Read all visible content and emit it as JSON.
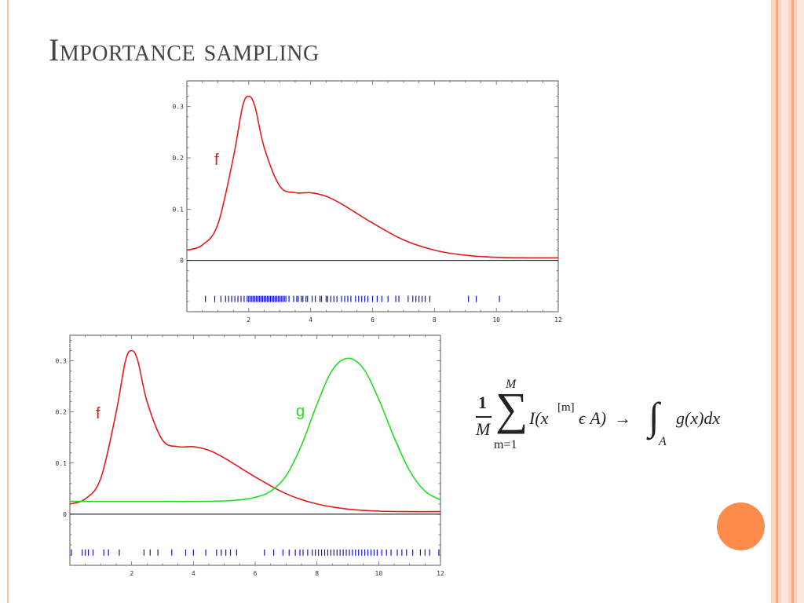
{
  "slide": {
    "title": "Importance sampling",
    "accent_color": "#fd8b4c",
    "rule_color": "#f7c3ab"
  },
  "formula": {
    "fraction_numerator": "1",
    "fraction_denominator": "M",
    "sum_upper": "M",
    "sum_lower": "m=1",
    "summand": "I(x",
    "superscript": "[m]",
    "summand_rest": "ϵ A)",
    "arrow": "→",
    "integral_subscript": "A",
    "integrand": "g(x)dx"
  },
  "chart_data": [
    {
      "type": "line",
      "x_ticks": [
        "2",
        "4",
        "6",
        "8",
        "10",
        "12"
      ],
      "y_ticks": [
        "0",
        "0.1",
        "0.2",
        "0.3"
      ],
      "xlim": [
        0,
        12
      ],
      "ylim": [
        -0.1,
        0.35
      ],
      "series": [
        {
          "name": "f",
          "color": "#e21b1b",
          "x": [
            0,
            0.5,
            1,
            1.5,
            1.8,
            2,
            2.2,
            2.5,
            3,
            3.5,
            4,
            4.5,
            5,
            6,
            7,
            8,
            9,
            10,
            11,
            12
          ],
          "y": [
            0.02,
            0.03,
            0.07,
            0.2,
            0.3,
            0.32,
            0.3,
            0.22,
            0.145,
            0.132,
            0.132,
            0.125,
            0.11,
            0.073,
            0.04,
            0.02,
            0.01,
            0.006,
            0.005,
            0.005
          ]
        }
      ],
      "rug": {
        "color": "#1414c8",
        "samples": [
          0.6,
          0.9,
          1.1,
          1.25,
          1.35,
          1.45,
          1.55,
          1.65,
          1.75,
          1.85,
          1.95,
          2.0,
          2.05,
          2.1,
          2.15,
          2.2,
          2.25,
          2.3,
          2.35,
          2.4,
          2.45,
          2.5,
          2.55,
          2.6,
          2.65,
          2.7,
          2.75,
          2.8,
          2.85,
          2.9,
          2.95,
          3.0,
          3.05,
          3.1,
          3.15,
          3.2,
          3.3,
          3.45,
          3.55,
          3.6,
          3.7,
          3.75,
          3.85,
          3.9,
          4.05,
          4.15,
          4.3,
          4.35,
          4.5,
          4.55,
          4.65,
          4.75,
          4.85,
          5.0,
          5.1,
          5.2,
          5.3,
          5.45,
          5.55,
          5.65,
          5.75,
          5.85,
          6.0,
          6.15,
          6.3,
          6.5,
          6.75,
          6.85,
          7.15,
          7.3,
          7.4,
          7.5,
          7.6,
          7.7,
          7.85,
          9.1,
          9.35,
          10.1
        ]
      }
    },
    {
      "type": "line",
      "x_ticks": [
        "2",
        "4",
        "6",
        "8",
        "10",
        "12"
      ],
      "y_ticks": [
        "0",
        "0.1",
        "0.2",
        "0.3"
      ],
      "xlim": [
        0,
        12
      ],
      "ylim": [
        -0.1,
        0.35
      ],
      "series": [
        {
          "name": "f",
          "color": "#e21b1b",
          "x": [
            0,
            0.5,
            1,
            1.5,
            1.8,
            2,
            2.2,
            2.5,
            3,
            3.5,
            4,
            4.5,
            5,
            6,
            7,
            8,
            9,
            10,
            11,
            12
          ],
          "y": [
            0.02,
            0.03,
            0.07,
            0.2,
            0.3,
            0.32,
            0.3,
            0.22,
            0.145,
            0.132,
            0.132,
            0.125,
            0.11,
            0.073,
            0.04,
            0.02,
            0.01,
            0.006,
            0.005,
            0.005
          ]
        },
        {
          "name": "g",
          "color": "#22dd22",
          "x": [
            0,
            1,
            2,
            3,
            4,
            5,
            5.5,
            6,
            6.5,
            7,
            7.5,
            8,
            8.5,
            9,
            9.5,
            10,
            10.5,
            11,
            11.5,
            12
          ],
          "y": [
            0.025,
            0.025,
            0.025,
            0.025,
            0.025,
            0.026,
            0.028,
            0.033,
            0.045,
            0.075,
            0.135,
            0.215,
            0.282,
            0.305,
            0.285,
            0.225,
            0.15,
            0.085,
            0.045,
            0.028
          ]
        }
      ],
      "rug": {
        "color": "#1414c8",
        "samples": [
          0.05,
          0.4,
          0.5,
          0.6,
          0.75,
          1.1,
          1.25,
          1.6,
          2.4,
          2.6,
          2.85,
          3.3,
          3.75,
          4.0,
          4.4,
          4.75,
          4.9,
          5.05,
          5.2,
          5.4,
          6.3,
          6.6,
          6.9,
          7.1,
          7.3,
          7.45,
          7.55,
          7.7,
          7.85,
          7.95,
          8.05,
          8.15,
          8.25,
          8.35,
          8.45,
          8.55,
          8.65,
          8.75,
          8.85,
          8.95,
          9.05,
          9.15,
          9.25,
          9.35,
          9.45,
          9.55,
          9.65,
          9.75,
          9.85,
          9.95,
          10.1,
          10.25,
          10.4,
          10.6,
          10.75,
          10.9,
          11.1,
          11.35,
          11.5,
          11.65,
          11.95
        ]
      }
    }
  ]
}
